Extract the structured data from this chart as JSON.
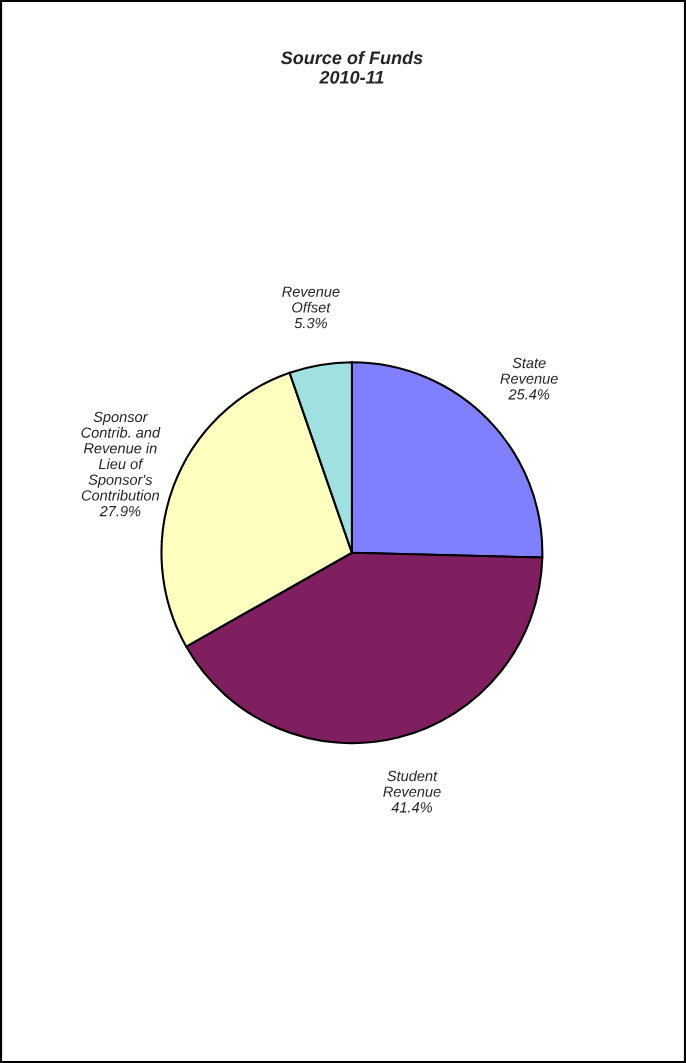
{
  "chart_data": {
    "type": "pie",
    "title": "Source of Funds\n2010-11",
    "categories": [
      "State\nRevenue",
      "Student\nRevenue",
      "Sponsor\nContrib. and\nRevenue in\nLieu of\nSponsor's\nContribution",
      "Revenue\nOffset"
    ],
    "values": [
      25.4,
      41.4,
      27.9,
      5.3
    ],
    "value_labels": [
      "25.4%",
      "41.4%",
      "27.9%",
      "5.3%"
    ],
    "colors": [
      "#8080ff",
      "#7f1f5f",
      "#ffffc0",
      "#a0e0e0"
    ]
  }
}
